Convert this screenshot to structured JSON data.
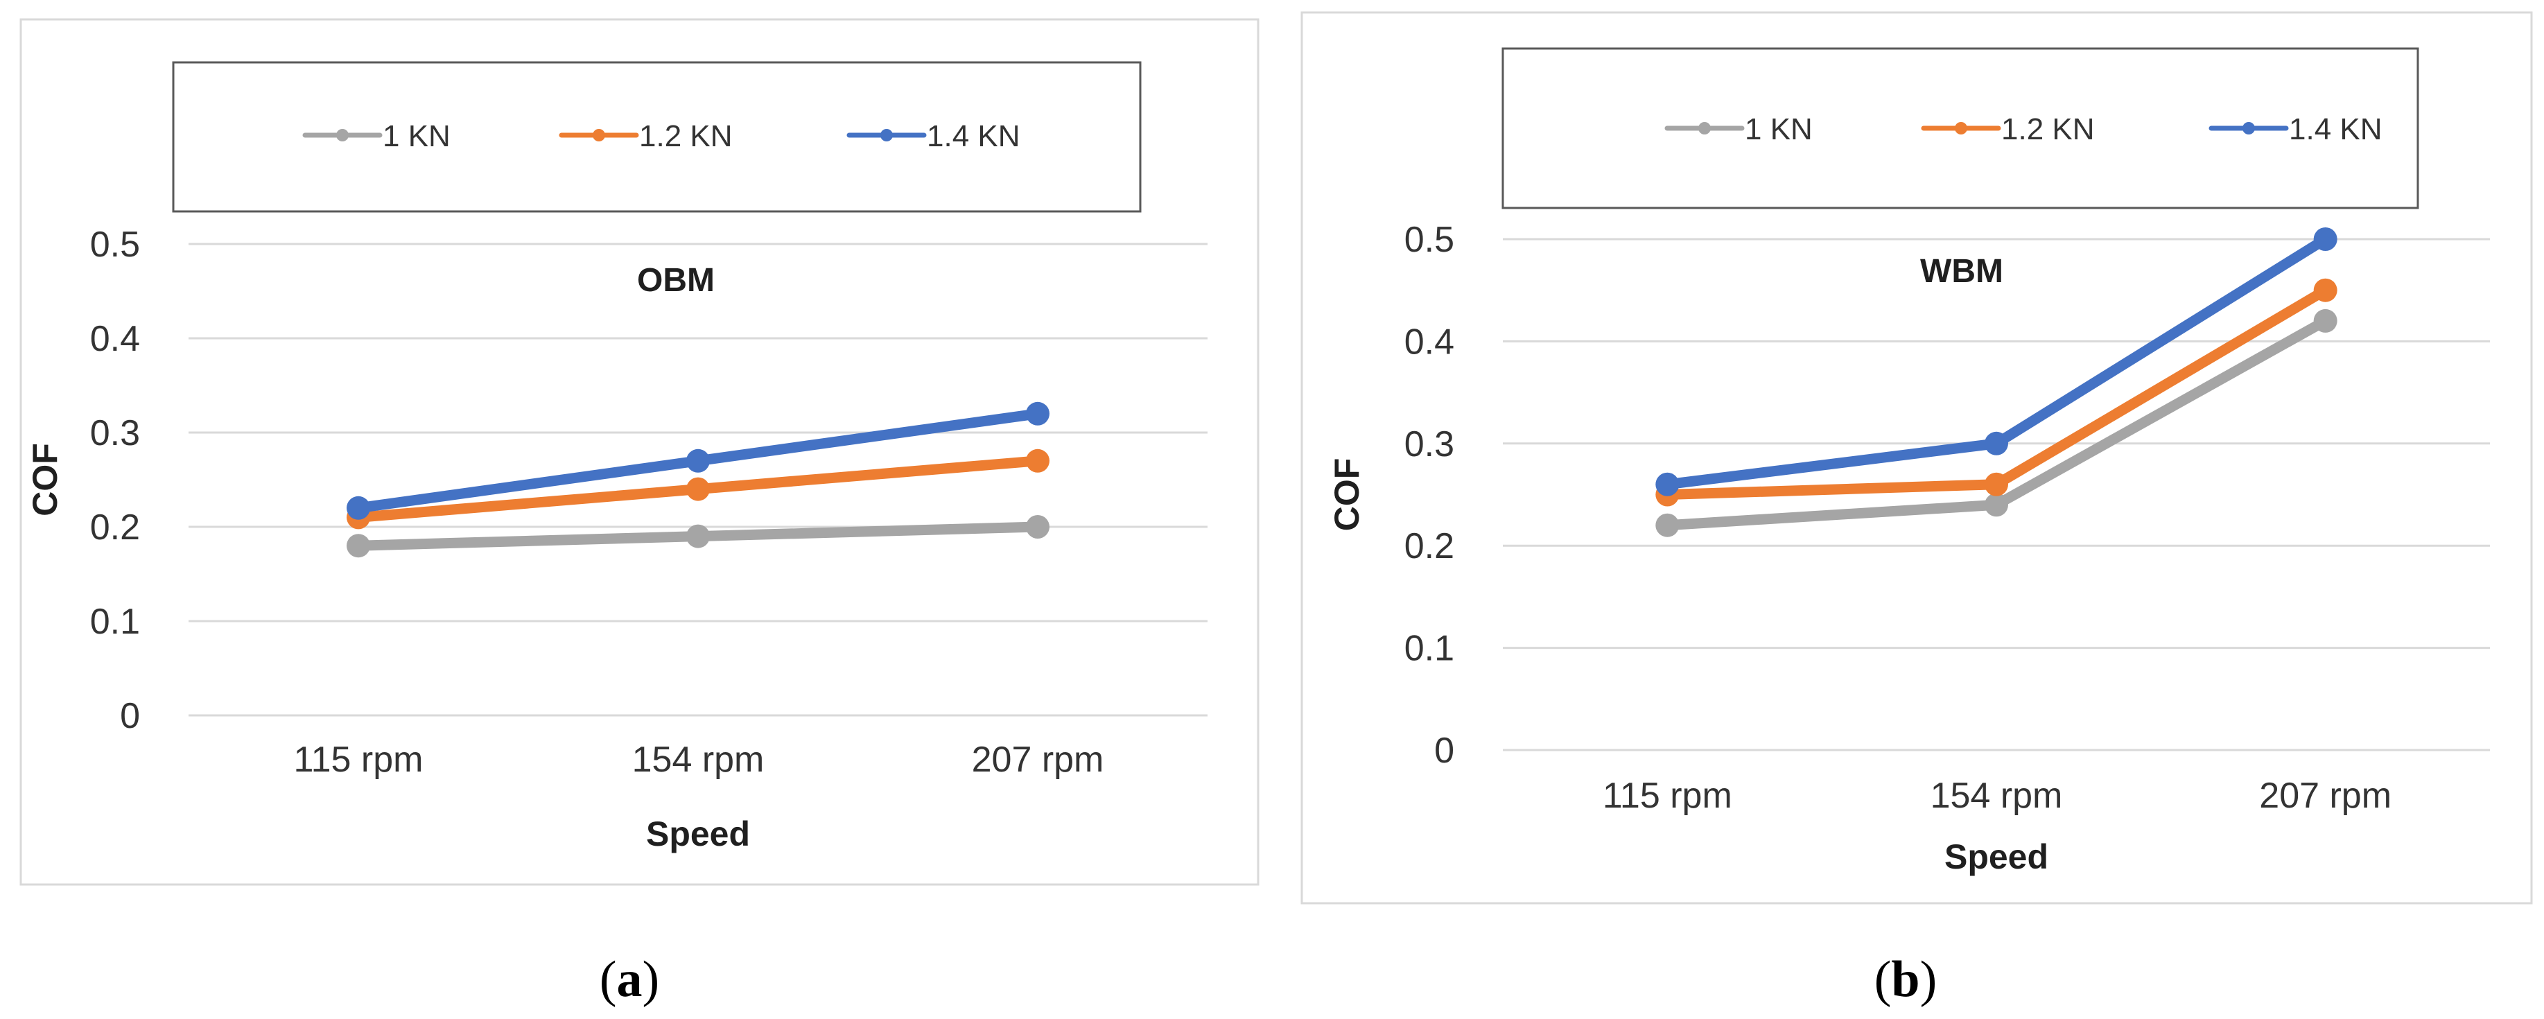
{
  "chart_data": [
    {
      "type": "line",
      "title": "OBM",
      "xlabel": "Speed",
      "ylabel": "COF",
      "categories": [
        "115 rpm",
        "154 rpm",
        "207 rpm"
      ],
      "ylim": [
        0,
        0.5
      ],
      "yticks": [
        "0",
        "0.1",
        "0.2",
        "0.3",
        "0.4",
        "0.5"
      ],
      "grid": true,
      "legend_position": "top",
      "series": [
        {
          "name": "1 KN",
          "color": "#a5a5a5",
          "values": [
            0.18,
            0.19,
            0.2
          ]
        },
        {
          "name": "1.2 KN",
          "color": "#ed7d31",
          "values": [
            0.21,
            0.24,
            0.27
          ]
        },
        {
          "name": "1.4 KN",
          "color": "#4472c4",
          "values": [
            0.22,
            0.27,
            0.32
          ]
        }
      ],
      "caption": {
        "open": "(",
        "letter": "a",
        "close": ")"
      }
    },
    {
      "type": "line",
      "title": "WBM",
      "xlabel": "Speed",
      "ylabel": "COF",
      "categories": [
        "115 rpm",
        "154 rpm",
        "207 rpm"
      ],
      "ylim": [
        0,
        0.5
      ],
      "yticks": [
        "0",
        "0.1",
        "0.2",
        "0.3",
        "0.4",
        "0.5"
      ],
      "grid": true,
      "legend_position": "top",
      "series": [
        {
          "name": "1 KN",
          "color": "#a5a5a5",
          "values": [
            0.22,
            0.24,
            0.42
          ]
        },
        {
          "name": "1.2 KN",
          "color": "#ed7d31",
          "values": [
            0.25,
            0.26,
            0.45
          ]
        },
        {
          "name": "1.4 KN",
          "color": "#4472c4",
          "values": [
            0.26,
            0.3,
            0.5
          ]
        }
      ],
      "caption": {
        "open": "(",
        "letter": "b",
        "close": ")"
      }
    }
  ]
}
